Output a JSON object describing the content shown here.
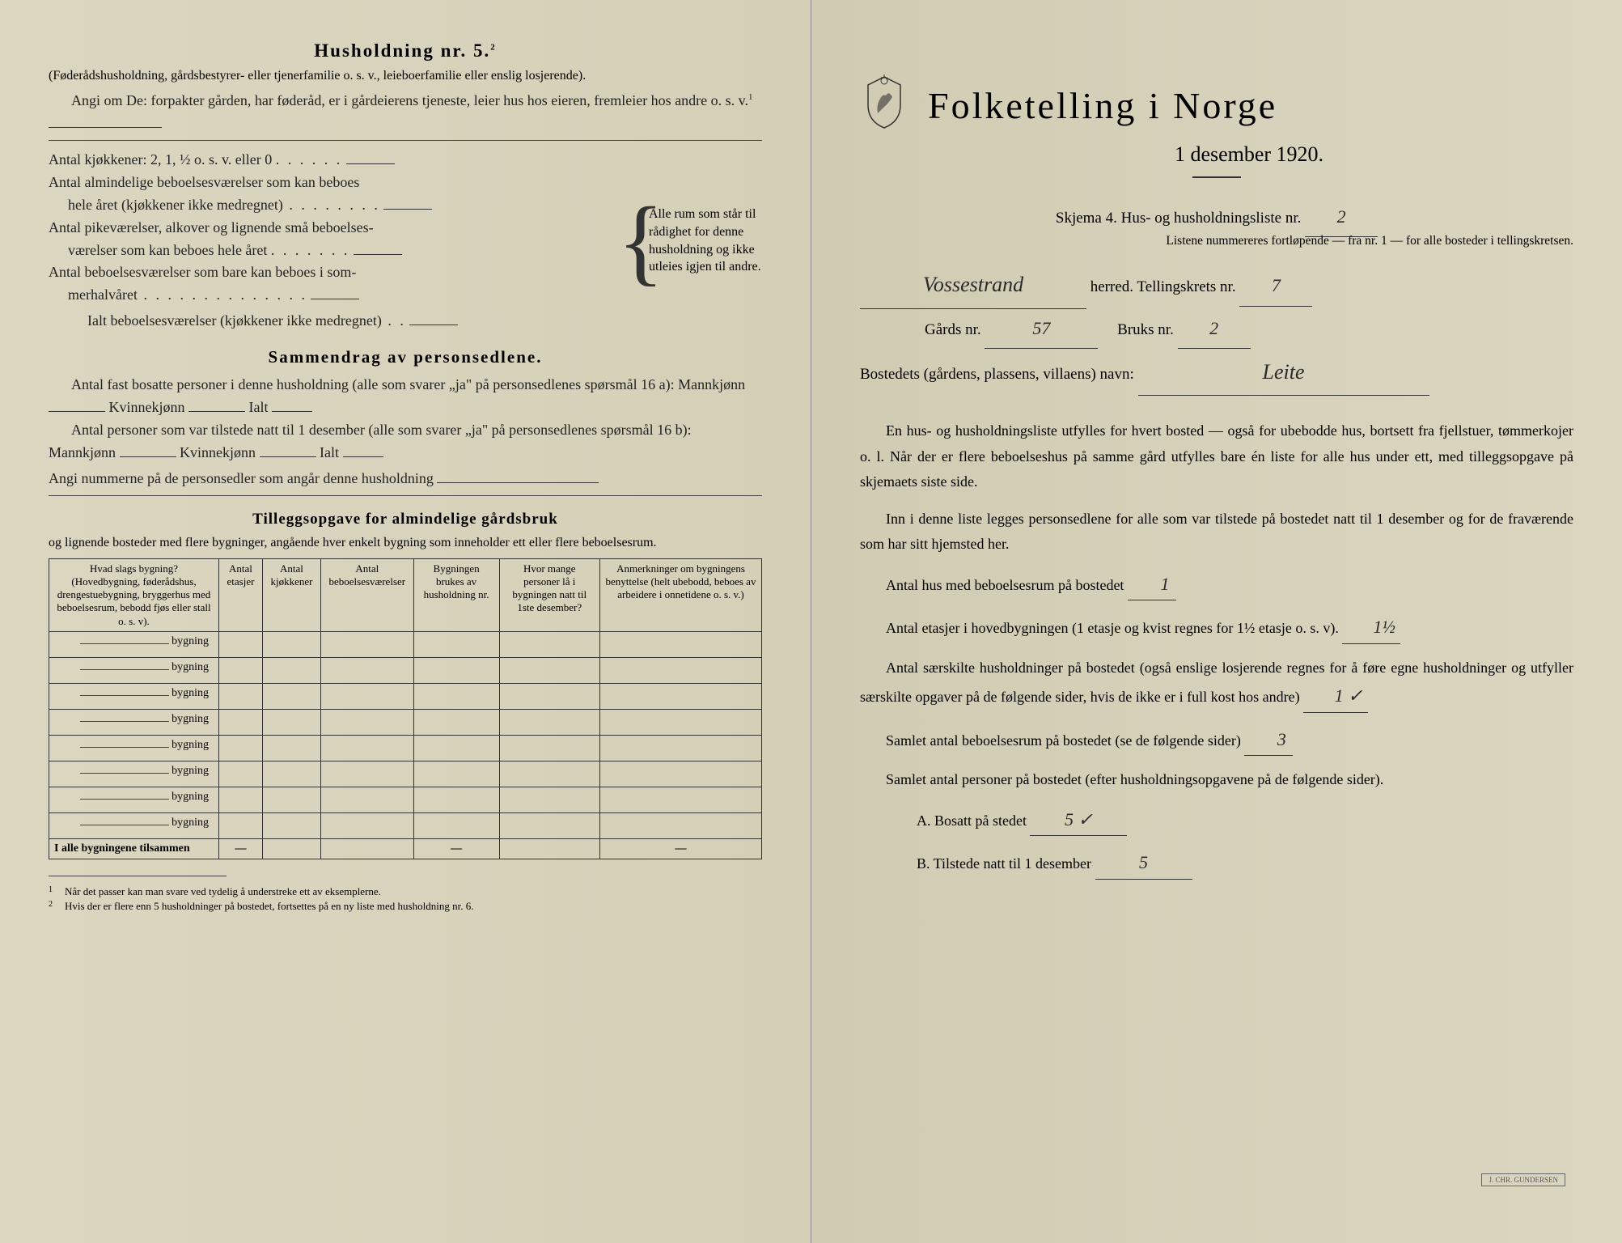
{
  "left": {
    "household_heading": "Husholdning nr. 5.",
    "household_sup": "2",
    "household_sub": "(Føderådshusholdning, gårdsbestyrer- eller tjenerfamilie o. s. v., leieboerfamilie eller enslig losjerende).",
    "angi_line1": "Angi om De: forpakter gården, har føderåd, er i gårdeierens tjeneste, leier hus hos eieren, fremleier hos andre o. s. v.",
    "angi_sup": "1",
    "kitchen_line": "Antal kjøkkener: 2, 1, ½ o. s. v. eller 0",
    "rooms_line1a": "Antal almindelige beboelsesværelser som kan beboes",
    "rooms_line1b": "hele året (kjøkkener ikke medregnet)",
    "rooms_line2a": "Antal pikeværelser, alkover og lignende små beboelses-",
    "rooms_line2b": "værelser som kan beboes hele året",
    "rooms_line3a": "Antal beboelsesværelser som bare kan beboes i som-",
    "rooms_line3b": "merhalvåret",
    "rooms_total": "Ialt beboelsesværelser (kjøkkener ikke medregnet)",
    "brace_text": "Alle rum som står til rådighet for denne husholdning og ikke utleies igjen til andre.",
    "summary_heading": "Sammendrag av personsedlene.",
    "summary_line1a": "Antal fast bosatte personer i denne husholdning (alle som svarer „ja\" på personsedlenes spørsmål 16 a): Mannkjønn",
    "summary_kvinne": "Kvinnekjønn",
    "summary_ialt": "Ialt",
    "summary_line2a": "Antal personer som var tilstede natt til 1 desember (alle som svarer „ja\" på personsedlenes spørsmål 16 b): Mannkjønn",
    "summary_line3": "Angi nummerne på de personsedler som angår denne husholdning",
    "tillegg_heading": "Tilleggsopgave for almindelige gårdsbruk",
    "tillegg_sub": "og lignende bosteder med flere bygninger, angående hver enkelt bygning som inneholder ett eller flere beboelsesrum.",
    "table": {
      "col1_header": "Hvad slags bygning?\n(Hovedbygning, føderådshus, drengestuebygning, bryggerhus med beboelsesrum, bebodd fjøs eller stall o. s. v).",
      "col2_header": "Antal etasjer",
      "col3_header": "Antal kjøkkener",
      "col4_header": "Antal beboelsesværelser",
      "col5_header": "Bygningen brukes av husholdning nr.",
      "col6_header": "Hvor mange personer lå i bygningen natt til 1ste desember?",
      "col7_header": "Anmerkninger om bygningens benyttelse (helt ubebodd, beboes av arbeidere i onnetidene o. s. v.)",
      "row_label": "bygning",
      "rows": 8,
      "footer": "I alle bygningene tilsammen"
    },
    "footnotes": [
      "Når det passer kan man svare ved tydelig å understreke ett av eksemplerne.",
      "Hvis der er flere enn 5 husholdninger på bostedet, fortsettes på en ny liste med husholdning nr. 6."
    ]
  },
  "right": {
    "main_title": "Folketelling i Norge",
    "subtitle": "1 desember 1920.",
    "form_line": "Skjema 4.   Hus- og husholdningsliste nr.",
    "form_nr": "2",
    "list_note": "Listene nummereres fortløpende — fra nr. 1 — for alle bosteder i tellingskretsen.",
    "herred_hand": "Vossestrand",
    "herred_label": "herred.   Tellingskrets nr.",
    "krets_nr": "7",
    "gards_label": "Gårds nr.",
    "gards_nr": "57",
    "bruks_label": "Bruks nr.",
    "bruks_nr": "2",
    "bosted_label": "Bostedets (gårdens, plassens, villaens) navn:",
    "bosted_hand": "Leite",
    "para1": "En hus- og husholdningsliste utfylles for hvert bosted — også for ubebodde hus, bortsett fra fjellstuer, tømmerkojer o. l.  Når der er flere beboelseshus på samme gård utfylles bare én liste for alle hus under ett, med tilleggsopgave på skjemaets siste side.",
    "para2": "Inn i denne liste legges personsedlene for alle som var tilstede på bostedet natt til 1 desember og for de fraværende som har sitt hjemsted her.",
    "q1": "Antal hus med beboelsesrum på bostedet",
    "q1_ans": "1",
    "q2a": "Antal etasjer i hovedbygningen (1 etasje og kvist regnes for 1½ etasje o. s. v).",
    "q2_ans": "1½",
    "q3": "Antal særskilte husholdninger på bostedet (også enslige losjerende regnes for å føre egne husholdninger og utfyller særskilte opgaver på de følgende sider, hvis de ikke er i full kost hos andre)",
    "q3_ans": "1 ✓",
    "q4": "Samlet antal beboelsesrum på bostedet (se de følgende sider)",
    "q4_ans": "3",
    "q5": "Samlet antal personer på bostedet (efter husholdningsopgavene på de følgende sider).",
    "qA": "A.  Bosatt på stedet",
    "qA_ans": "5 ✓",
    "qB": "B.  Tilstede natt til 1 desember",
    "qB_ans": "5"
  }
}
